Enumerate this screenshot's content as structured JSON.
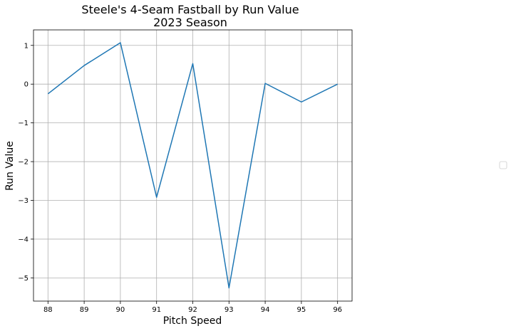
{
  "chart_data": {
    "type": "line",
    "title": "Steele's 4-Seam Fastball by Run Value",
    "subtitle": "2023 Season",
    "xlabel": "Pitch Speed",
    "ylabel": "Run Value",
    "x": [
      88,
      89,
      90,
      91,
      92,
      93,
      94,
      95,
      96
    ],
    "x_ticks": [
      "88",
      "89",
      "90",
      "91",
      "92",
      "93",
      "94",
      "95",
      "96"
    ],
    "y_ticks": [
      "1",
      "0",
      "−1",
      "−2",
      "−3",
      "−4",
      "−5"
    ],
    "y_tick_values": [
      1,
      0,
      -1,
      -2,
      -3,
      -4,
      -5
    ],
    "xlim": [
      87.6,
      96.4
    ],
    "ylim": [
      -5.6,
      1.4
    ],
    "grid": true,
    "legend_placement": "center-right",
    "series": [
      {
        "color": "#1f77b4",
        "values": [
          -0.25,
          0.48,
          1.07,
          -2.92,
          0.53,
          -5.26,
          0.02,
          -0.46,
          0.0
        ]
      }
    ]
  }
}
